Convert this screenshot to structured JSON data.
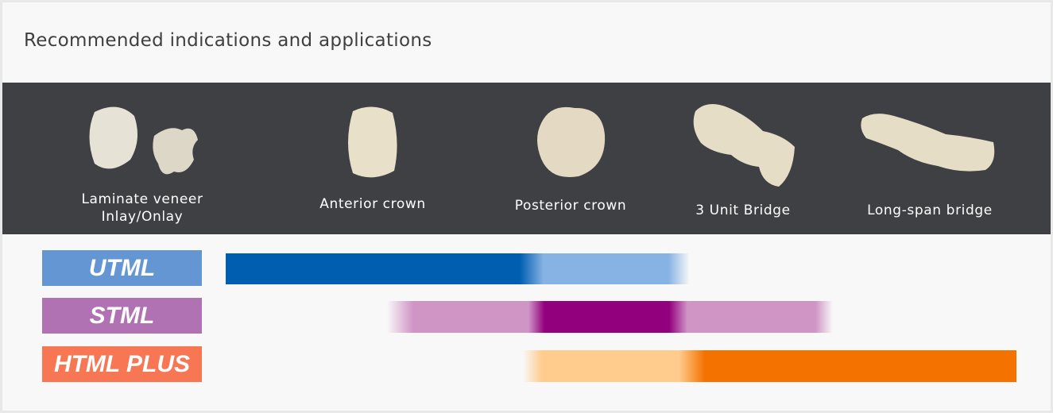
{
  "title": "Recommended indications and applications",
  "indications": [
    {
      "icon": "laminate-veneer-inlay-icon",
      "label_lines": [
        "Laminate veneer",
        "Inlay/Onlay"
      ]
    },
    {
      "icon": "anterior-crown-icon",
      "label_lines": [
        "Anterior crown"
      ]
    },
    {
      "icon": "posterior-crown-icon",
      "label_lines": [
        "Posterior crown"
      ]
    },
    {
      "icon": "three-unit-bridge-icon",
      "label_lines": [
        "3 Unit Bridge"
      ]
    },
    {
      "icon": "long-span-bridge-icon",
      "label_lines": [
        "Long-span bridge"
      ]
    }
  ],
  "materials": [
    {
      "label": "UTML",
      "tag_color": "#6396d2",
      "strong_color": "#005eb0",
      "light_color": "#86b3e3"
    },
    {
      "label": "STML",
      "tag_color": "#b072b2",
      "strong_color": "#93007e",
      "light_color": "#cf95c5"
    },
    {
      "label": "HTML PLUS",
      "tag_color": "#f77755",
      "strong_color": "#f47300",
      "light_color": "#ffcc8e"
    }
  ]
}
